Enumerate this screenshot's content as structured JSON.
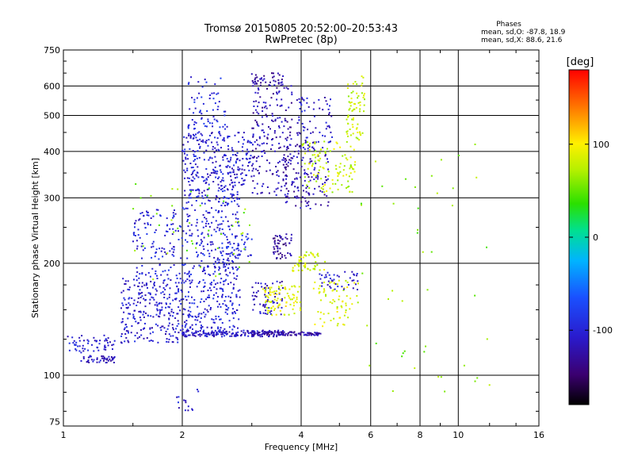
{
  "chart_data": {
    "type": "scatter",
    "title": "Tromsø 20150805 20:52:00–20:53:43",
    "subtitle": "RwPretec (8p)",
    "stats": {
      "heading": "Phases",
      "line1": "mean, sd,O:  -87.8, 18.9",
      "line2": "mean, sd,X:  88.6, 21.6"
    },
    "xlabel": "Frequency [MHz]",
    "ylabel": "Stationary phase Virtual Height [km]",
    "x_scale": "log",
    "y_scale": "log",
    "xlim": [
      1,
      16
    ],
    "ylim": [
      73,
      750
    ],
    "x_ticks": [
      1,
      2,
      4,
      6,
      8,
      10,
      16
    ],
    "y_ticks": [
      75,
      100,
      200,
      300,
      400,
      500,
      600,
      750
    ],
    "grid": true,
    "colorbar": {
      "label": "[deg]",
      "range": [
        -180,
        180
      ],
      "ticks": [
        100,
        0,
        -100
      ]
    },
    "clusters": [
      {
        "name": "",
        "x": [
          1.0,
          1.35
        ],
        "y": [
          115,
          128
        ],
        "phase": -105,
        "n": 60
      },
      {
        "name": "",
        "x": [
          1.1,
          1.35
        ],
        "y": [
          108,
          113
        ],
        "phase": -115,
        "n": 45
      },
      {
        "name": "",
        "x": [
          1.4,
          2.0
        ],
        "y": [
          122,
          185
        ],
        "phase": -105,
        "n": 260
      },
      {
        "name": "",
        "x": [
          1.5,
          2.0
        ],
        "y": [
          185,
          280
        ],
        "phase": -100,
        "n": 120
      },
      {
        "name": "",
        "x": [
          2.0,
          2.8
        ],
        "y": [
          128,
          200
        ],
        "phase": -100,
        "n": 260
      },
      {
        "name": "",
        "x": [
          2.0,
          2.8
        ],
        "y": [
          200,
          320
        ],
        "phase": -100,
        "n": 220
      },
      {
        "name": "",
        "x": [
          2.0,
          3.0
        ],
        "y": [
          320,
          450
        ],
        "phase": -105,
        "n": 260
      },
      {
        "name": "",
        "x": [
          2.05,
          2.6
        ],
        "y": [
          450,
          640
        ],
        "phase": -95,
        "n": 70
      },
      {
        "name": "",
        "x": [
          2.0,
          3.6
        ],
        "y": [
          127,
          132
        ],
        "phase": -110,
        "n": 160
      },
      {
        "name": "",
        "x": [
          3.0,
          4.5
        ],
        "y": [
          128,
          131
        ],
        "phase": -125,
        "n": 110
      },
      {
        "name": "",
        "x": [
          3.0,
          3.8
        ],
        "y": [
          300,
          620
        ],
        "phase": -120,
        "n": 200
      },
      {
        "name": "",
        "x": [
          3.0,
          3.6
        ],
        "y": [
          600,
          650
        ],
        "phase": -125,
        "n": 40
      },
      {
        "name": "",
        "x": [
          3.6,
          4.7
        ],
        "y": [
          280,
          420
        ],
        "phase": -120,
        "n": 140
      },
      {
        "name": "",
        "x": [
          3.9,
          4.8
        ],
        "y": [
          420,
          560
        ],
        "phase": -110,
        "n": 70
      },
      {
        "name": "",
        "x": [
          4.0,
          5.5
        ],
        "y": [
          310,
          430
        ],
        "phase": 80,
        "n": 110
      },
      {
        "name": "",
        "x": [
          5.2,
          5.8
        ],
        "y": [
          430,
          640
        ],
        "phase": 80,
        "n": 70
      },
      {
        "name": "",
        "x": [
          3.4,
          3.8
        ],
        "y": [
          205,
          240
        ],
        "phase": -130,
        "n": 55
      },
      {
        "name": "",
        "x": [
          3.8,
          4.6
        ],
        "y": [
          190,
          215
        ],
        "phase": 85,
        "n": 50
      },
      {
        "name": "",
        "x": [
          3.0,
          3.6
        ],
        "y": [
          145,
          180
        ],
        "phase": -115,
        "n": 60
      },
      {
        "name": "",
        "x": [
          3.2,
          4.0
        ],
        "y": [
          145,
          175
        ],
        "phase": 90,
        "n": 90
      },
      {
        "name": "",
        "x": [
          4.3,
          5.6
        ],
        "y": [
          135,
          180
        ],
        "phase": 85,
        "n": 70
      },
      {
        "name": "",
        "x": [
          4.4,
          5.6
        ],
        "y": [
          170,
          190
        ],
        "phase": -110,
        "n": 40
      },
      {
        "name": "",
        "x": [
          2.5,
          3.0
        ],
        "y": [
          200,
          240
        ],
        "phase": -95,
        "n": 40
      },
      {
        "name": "",
        "x": [
          1.9,
          2.2
        ],
        "y": [
          80,
          95
        ],
        "phase": -105,
        "n": 14
      },
      {
        "name": "",
        "x": [
          5.5,
          12.0
        ],
        "y": [
          90,
          420
        ],
        "phase": 60,
        "n": 45
      },
      {
        "name": "",
        "x": [
          1.5,
          3.0
        ],
        "y": [
          180,
          330
        ],
        "phase": 55,
        "n": 45
      }
    ]
  }
}
